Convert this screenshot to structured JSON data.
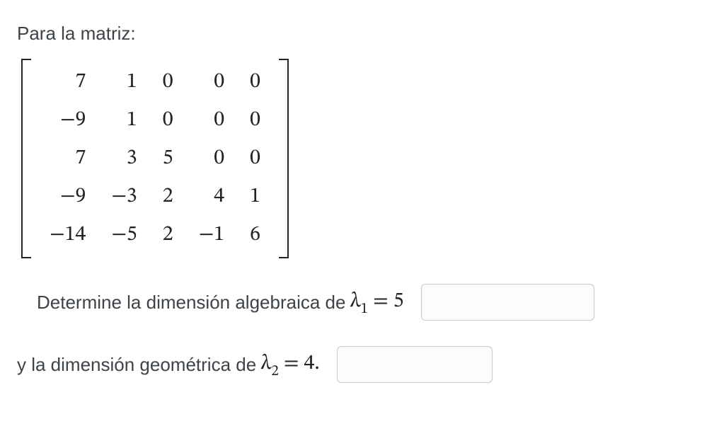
{
  "intro": "Para la matriz:",
  "matrix": {
    "rows": [
      [
        "7",
        "1",
        "0",
        "0",
        "0"
      ],
      [
        "−9",
        "1",
        "0",
        "0",
        "0"
      ],
      [
        "7",
        "3",
        "5",
        "0",
        "0"
      ],
      [
        "−9",
        "−3",
        "2",
        "4",
        "1"
      ],
      [
        "−14",
        "−5",
        "2",
        "−1",
        "6"
      ]
    ],
    "font_family": "Cambria Math",
    "text_color": "#232323",
    "bracket_color": "#232323"
  },
  "question1": {
    "prefix": "Determine la dimensión algebraica de ",
    "lambda": "λ",
    "subscript": "1",
    "equals": " = 5",
    "input_value": ""
  },
  "question2": {
    "prefix": "y la dimensión geométrica de ",
    "lambda": "λ",
    "subscript": "2",
    "equals": " = 4.",
    "input_value": ""
  },
  "styles": {
    "body_font": "Segoe UI",
    "body_color": "#3d4349",
    "body_fontsize": 26,
    "math_fontsize": 30,
    "input_border": "#c8cacc",
    "input_bg": "#fcfcfc",
    "input_radius": 6
  }
}
